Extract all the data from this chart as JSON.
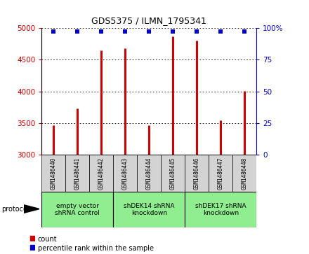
{
  "title": "GDS5375 / ILMN_1795341",
  "samples": [
    "GSM1486440",
    "GSM1486441",
    "GSM1486442",
    "GSM1486443",
    "GSM1486444",
    "GSM1486445",
    "GSM1486446",
    "GSM1486447",
    "GSM1486448"
  ],
  "counts": [
    3470,
    3730,
    4650,
    4680,
    3470,
    4870,
    4800,
    3540,
    4010
  ],
  "percentiles": [
    97,
    97,
    97,
    97,
    97,
    97,
    97,
    97,
    97
  ],
  "ylim_left": [
    3000,
    5000
  ],
  "ylim_right": [
    0,
    100
  ],
  "yticks_left": [
    3000,
    3500,
    4000,
    4500,
    5000
  ],
  "yticks_right": [
    0,
    25,
    50,
    75,
    100
  ],
  "bar_color": "#cc0000",
  "dot_color": "#0000cc",
  "groups": [
    {
      "label": "empty vector\nshRNA control",
      "start": 0,
      "end": 3,
      "color": "#90ee90"
    },
    {
      "label": "shDEK14 shRNA\nknockdown",
      "start": 3,
      "end": 6,
      "color": "#90ee90"
    },
    {
      "label": "shDEK17 shRNA\nknockdown",
      "start": 6,
      "end": 9,
      "color": "#90ee90"
    }
  ],
  "legend_count_label": "count",
  "legend_pct_label": "percentile rank within the sample",
  "protocol_label": "protocol",
  "background_color": "#ffffff",
  "plot_bg_color": "#ffffff",
  "tick_label_color_left": "#cc0000",
  "tick_label_color_right": "#0000cc",
  "sample_box_color": "#d3d3d3"
}
